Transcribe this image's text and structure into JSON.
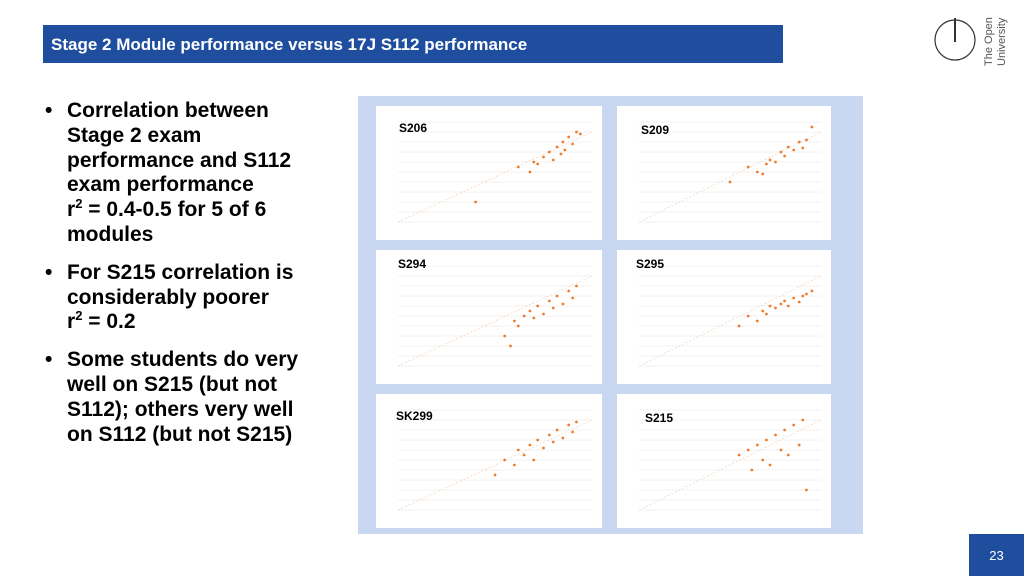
{
  "header": {
    "title": "Stage 2 Module performance versus 17J S112 performance",
    "logo_line1": "The Open",
    "logo_line2": "University"
  },
  "bullets": [
    {
      "lines": [
        "Correlation between",
        "Stage 2 exam",
        "performance and S112",
        "exam performance"
      ],
      "formula": {
        "base": "r",
        "sup": "2",
        "rest": " = 0.4-0.5 for 5 of 6"
      },
      "after": [
        "modules"
      ]
    },
    {
      "lines": [
        "For S215 correlation is",
        "considerably poorer"
      ],
      "formula": {
        "base": "r",
        "sup": "2",
        "rest": " = 0.2"
      },
      "after": []
    },
    {
      "lines": [
        "Some students do very",
        "well on S215 (but not",
        "S112); others very well",
        "on S112 (but not S215)"
      ],
      "after": []
    }
  ],
  "panels": [
    {
      "label": "S206",
      "x": [
        62,
        70,
        75,
        78,
        80,
        82,
        85,
        86,
        88,
        90,
        92,
        94,
        68,
        72,
        84,
        40
      ],
      "y": [
        55,
        60,
        65,
        70,
        62,
        75,
        80,
        72,
        85,
        78,
        90,
        88,
        50,
        58,
        68,
        20
      ]
    },
    {
      "label": "S209",
      "x": [
        50,
        60,
        65,
        70,
        72,
        75,
        78,
        80,
        82,
        85,
        88,
        90,
        92,
        95,
        68
      ],
      "y": [
        40,
        55,
        50,
        58,
        62,
        60,
        70,
        66,
        75,
        72,
        80,
        74,
        82,
        95,
        48
      ]
    },
    {
      "label": "S294",
      "x": [
        55,
        60,
        62,
        65,
        68,
        70,
        72,
        75,
        78,
        80,
        82,
        85,
        88,
        90,
        92,
        58
      ],
      "y": [
        30,
        45,
        40,
        50,
        55,
        48,
        60,
        52,
        65,
        58,
        70,
        62,
        75,
        68,
        80,
        20
      ]
    },
    {
      "label": "S295",
      "x": [
        55,
        60,
        65,
        68,
        70,
        72,
        75,
        78,
        80,
        82,
        85,
        88,
        90,
        92,
        95
      ],
      "y": [
        40,
        50,
        45,
        55,
        52,
        60,
        58,
        62,
        65,
        60,
        68,
        64,
        70,
        72,
        75
      ]
    },
    {
      "label": "SK299",
      "x": [
        50,
        55,
        60,
        62,
        65,
        68,
        70,
        72,
        75,
        78,
        80,
        82,
        85,
        88,
        90,
        92
      ],
      "y": [
        35,
        50,
        45,
        60,
        55,
        65,
        50,
        70,
        62,
        75,
        68,
        80,
        72,
        85,
        78,
        88
      ]
    },
    {
      "label": "S215",
      "x": [
        55,
        60,
        62,
        65,
        68,
        70,
        72,
        75,
        78,
        80,
        82,
        85,
        88,
        90,
        92
      ],
      "y": [
        55,
        60,
        40,
        65,
        50,
        70,
        45,
        75,
        60,
        80,
        55,
        85,
        65,
        90,
        20
      ]
    }
  ],
  "page_number": "23"
}
